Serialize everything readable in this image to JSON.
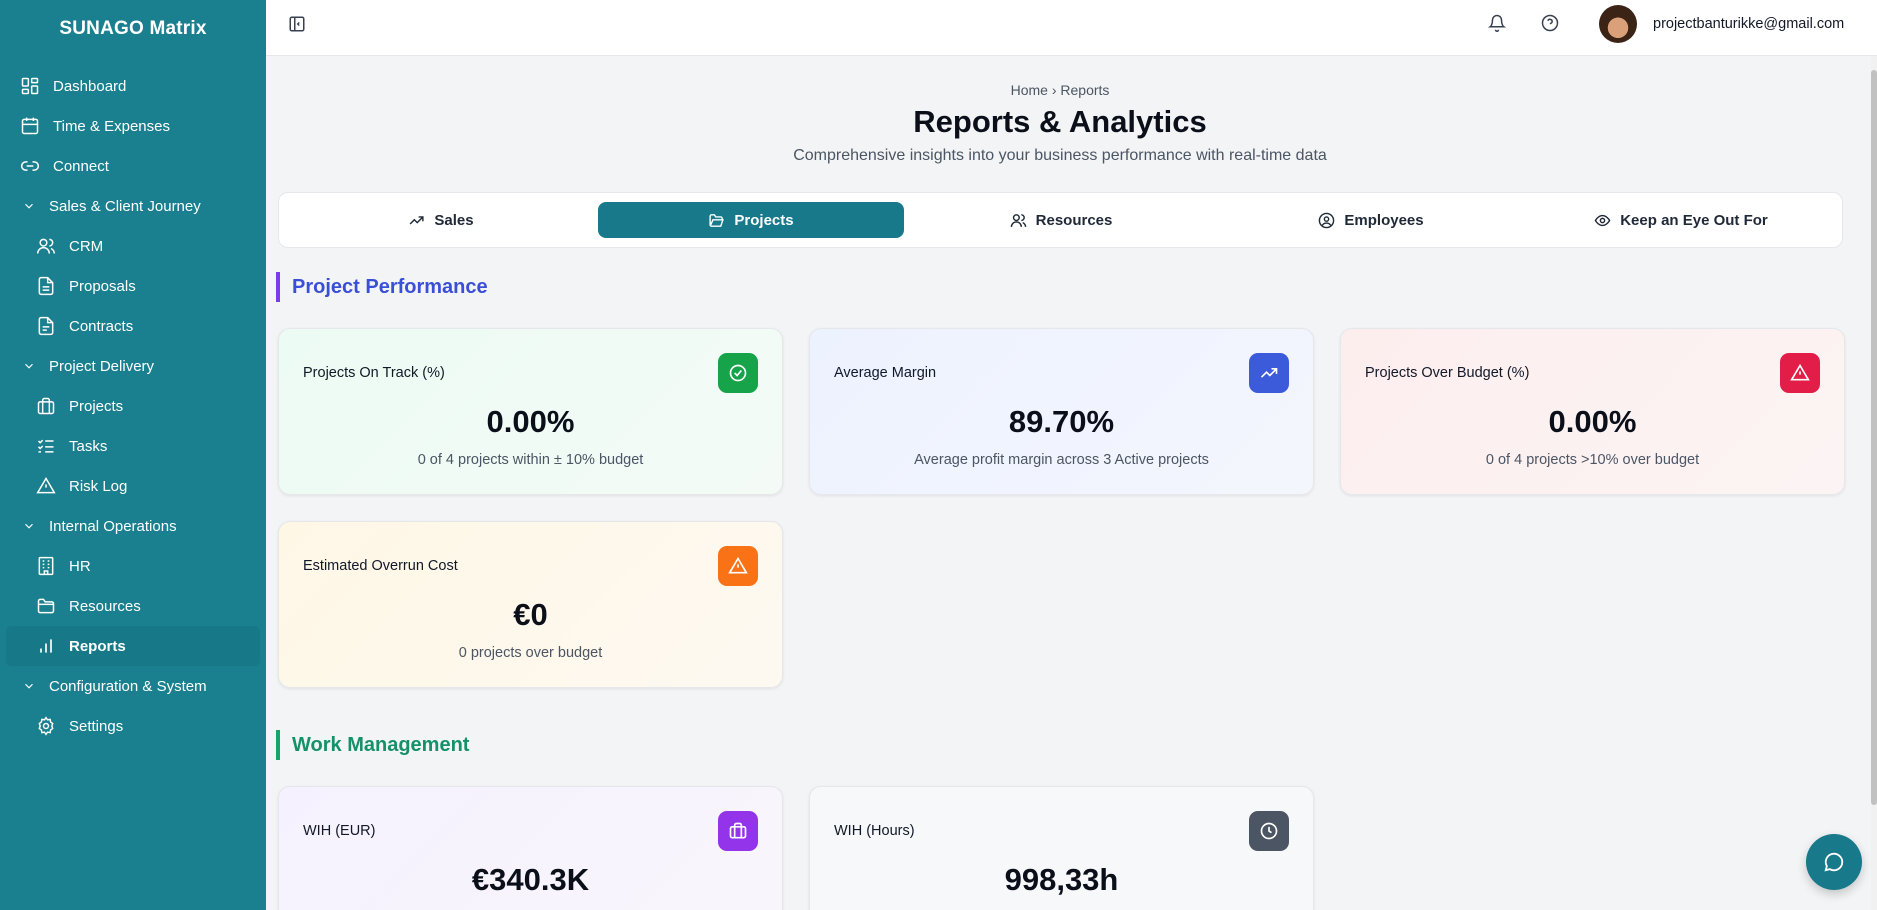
{
  "app": {
    "brand": "SUNAGO Matrix"
  },
  "sidebar": {
    "items": [
      {
        "label": "Dashboard",
        "icon": "grid-icon"
      },
      {
        "label": "Time & Expenses",
        "icon": "calendar-icon"
      },
      {
        "label": "Connect",
        "icon": "link-icon"
      }
    ],
    "groups": [
      {
        "label": "Sales & Client Journey",
        "items": [
          {
            "label": "CRM",
            "icon": "users-icon"
          },
          {
            "label": "Proposals",
            "icon": "file-icon"
          },
          {
            "label": "Contracts",
            "icon": "file-text-icon"
          }
        ]
      },
      {
        "label": "Project Delivery",
        "items": [
          {
            "label": "Projects",
            "icon": "briefcase-icon"
          },
          {
            "label": "Tasks",
            "icon": "list-checks-icon"
          },
          {
            "label": "Risk Log",
            "icon": "triangle-alert-icon"
          }
        ]
      },
      {
        "label": "Internal Operations",
        "items": [
          {
            "label": "HR",
            "icon": "building-icon"
          },
          {
            "label": "Resources",
            "icon": "folder-icon"
          },
          {
            "label": "Reports",
            "icon": "bar-chart-icon"
          }
        ]
      },
      {
        "label": "Configuration & System",
        "items": [
          {
            "label": "Settings",
            "icon": "gear-icon"
          }
        ]
      }
    ],
    "active": "Reports"
  },
  "header": {
    "user_email": "projectbanturikke@gmail.com"
  },
  "page": {
    "breadcrumb": "Home › Reports",
    "title": "Reports & Analytics",
    "subtitle": "Comprehensive insights into your business performance with real-time data"
  },
  "tabs": [
    {
      "label": "Sales",
      "icon": "trending-up-icon"
    },
    {
      "label": "Projects",
      "icon": "folder-open-icon",
      "active": true
    },
    {
      "label": "Resources",
      "icon": "users-icon"
    },
    {
      "label": "Employees",
      "icon": "user-circle-icon"
    },
    {
      "label": "Keep an Eye Out For",
      "icon": "eye-icon"
    }
  ],
  "sections": {
    "project_performance": {
      "title": "Project Performance",
      "cards": [
        {
          "label": "Projects On Track (%)",
          "value": "0.00%",
          "desc": "0 of 4 projects within ± 10% budget",
          "icon": "check-circle-icon",
          "color": "#16a34a"
        },
        {
          "label": "Average Margin",
          "value": "89.70%",
          "desc": "Average profit margin across 3 Active projects",
          "icon": "trending-up-icon",
          "color": "#3b5bdb"
        },
        {
          "label": "Projects Over Budget (%)",
          "value": "0.00%",
          "desc": "0 of 4 projects >10% over budget",
          "icon": "triangle-alert-icon",
          "color": "#e11d48"
        },
        {
          "label": "Estimated Overrun Cost",
          "value": "€0",
          "desc": "0 projects over budget",
          "icon": "triangle-alert-icon",
          "color": "#f97316"
        }
      ]
    },
    "work_management": {
      "title": "Work Management",
      "cards": [
        {
          "label": "WIH (EUR)",
          "value": "€340.3K",
          "icon": "briefcase-icon",
          "color": "#9333ea"
        },
        {
          "label": "WIH (Hours)",
          "value": "998,33h",
          "icon": "clock-icon",
          "color": "#4b5563"
        }
      ]
    }
  }
}
